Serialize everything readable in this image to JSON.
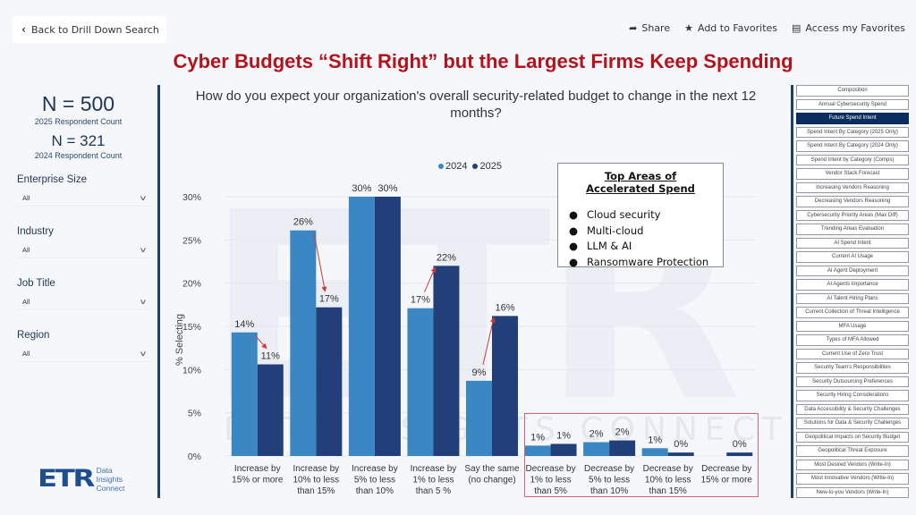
{
  "header": {
    "back_label": "Back to Drill Down Search",
    "back_icon": "chevron-left-icon",
    "actions": [
      {
        "label": "Share",
        "icon": "share-icon",
        "glyph": "➦"
      },
      {
        "label": "Add to Favorites",
        "icon": "star-icon",
        "glyph": "★"
      },
      {
        "label": "Access my Favorites",
        "icon": "list-icon",
        "glyph": "▤"
      }
    ],
    "title": "Cyber Budgets “Shift Right” but the Largest Firms Keep Spending"
  },
  "left_panel": {
    "n_2025": "N = 500",
    "n_2025_label": "2025 Respondent Count",
    "n_2024": "N = 321",
    "n_2024_label": "2024 Respondent Count",
    "filters": [
      {
        "label": "Enterprise Size",
        "value": "All"
      },
      {
        "label": "Industry",
        "value": "All"
      },
      {
        "label": "Job Title",
        "value": "All"
      },
      {
        "label": "Region",
        "value": "All"
      }
    ],
    "logo": {
      "mark": "ETR",
      "tagline": [
        "Data",
        "Insights",
        "Connect"
      ]
    }
  },
  "question": "How do you expect your organization's overall security-related budget to change in the next 12 months?",
  "callout": {
    "title": "Top Areas of Accelerated Spend",
    "items": [
      "Cloud security",
      "Multi-cloud",
      "LLM & AI",
      "Ransomware Protection"
    ]
  },
  "watermark": {
    "mark": "ETR",
    "text": "DATA INSIGHTS CONNECT"
  },
  "colors": {
    "c2024": "#3a87c4",
    "c2025": "#233f7a",
    "accent": "#b5121b",
    "arrow": "#d23a3a"
  },
  "chart_data": {
    "type": "bar",
    "title": "How do you expect your organization's overall security-related budget to change in the next 12 months?",
    "xlabel": "",
    "ylabel": "% Selecting",
    "ylim": [
      0,
      30
    ],
    "yticks": [
      0,
      5,
      10,
      15,
      20,
      25,
      30
    ],
    "ytick_labels": [
      "0%",
      "5%",
      "10%",
      "15%",
      "20%",
      "25%",
      "30%"
    ],
    "grid": true,
    "legend_position": "top-center",
    "categories": [
      [
        "Increase by",
        "15% or more"
      ],
      [
        "Increase by",
        "10% to less",
        "than 15%"
      ],
      [
        "Increase by",
        "5% to less",
        "than 10%"
      ],
      [
        "Increase by",
        "1% to less",
        "than 5 %"
      ],
      [
        "Say the same",
        "(no change)"
      ],
      [
        "Decrease by",
        "1% to less",
        "than 5%"
      ],
      [
        "Decrease by",
        "5% to less",
        "than 10%"
      ],
      [
        "Decrease by",
        "10% to less",
        "than 15%"
      ],
      [
        "Decrease by",
        "15% or more"
      ]
    ],
    "series": [
      {
        "name": "2024",
        "values": [
          14.3,
          26.1,
          30,
          17.1,
          8.7,
          1.2,
          1.6,
          0.9,
          null
        ],
        "labels": [
          "14%",
          "26%",
          "30%",
          "17%",
          "9%",
          "1%",
          "2%",
          "1%",
          ""
        ]
      },
      {
        "name": "2025",
        "values": [
          10.6,
          17.2,
          30,
          22,
          16.2,
          1.4,
          1.8,
          0.4,
          0.4
        ],
        "labels": [
          "11%",
          "17%",
          "30%",
          "22%",
          "16%",
          "1%",
          "2%",
          "0%",
          "0%"
        ]
      }
    ],
    "annotations": [
      {
        "type": "arrow",
        "category": 0,
        "direction": "down"
      },
      {
        "type": "arrow",
        "category": 1,
        "direction": "down"
      },
      {
        "type": "arrow",
        "category": 3,
        "direction": "up"
      },
      {
        "type": "arrow",
        "category": 4,
        "direction": "up"
      },
      {
        "type": "box",
        "categories": [
          5,
          6,
          7,
          8
        ],
        "label": "decrease group highlight"
      }
    ]
  },
  "nav": {
    "active_index": 2,
    "items": [
      "Composition",
      "Annual Cybersecurity Spend",
      "Future Spend Intent",
      "Spend Intent By Category (2025 Only)",
      "Spend Intent By Category (2024 Only)",
      "Spend Intent by Category (Comps)",
      "Vendor Stack Forecast",
      "Increasing Vendors Reasoning",
      "Decreasing Vendors Reasoning",
      "Cybersecurity Priority Areas (Max Diff)",
      "Trending Areas Evaluation",
      "AI Spend Intent",
      "Current AI Usage",
      "AI Agent Deployment",
      "AI Agents Importance",
      "AI Talent Hiring Plans",
      "Current Collection of Threat Intelligence",
      "MFA Usage",
      "Types of MFA Allowed",
      "Current Use of Zero Trust",
      "Security Team's Responsibilities",
      "Security Outsourcing Preferences",
      "Security Hiring Considerations",
      "Data Accessibility & Security Challenges",
      "Solutions for Data & Security Challenges",
      "Geopolitical Impacts on Security Budget",
      "Geopolitical Threat Exposure",
      "Most Desired Vendors (Write-In)",
      "Most Innovative Vendors (Write-In)",
      "New-to-you Vendors (Write-In)"
    ]
  }
}
